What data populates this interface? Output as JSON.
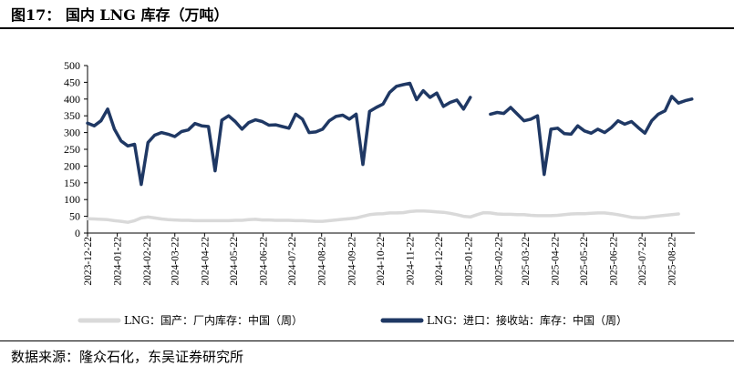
{
  "figure": {
    "title": "图17：  国内 LNG 库存（万吨）",
    "source": "数据来源：隆众石化，东吴证券研究所"
  },
  "colors": {
    "domestic": "#d9d9d9",
    "import": "#1f3864",
    "axis": "#000000"
  },
  "chart_data": {
    "type": "line",
    "title": "国内 LNG 库存（万吨）",
    "xlabel": "",
    "ylabel": "",
    "ylim": [
      0,
      500
    ],
    "yticks": [
      "0",
      "50",
      "100",
      "150",
      "200",
      "250",
      "300",
      "350",
      "400",
      "450",
      "500"
    ],
    "xticks": [
      "2023-12-22",
      "2024-01-22",
      "2024-02-22",
      "2024-03-22",
      "2024-04-22",
      "2024-05-22",
      "2024-06-22",
      "2024-07-22",
      "2024-08-22",
      "2024-09-22",
      "2024-10-22",
      "2024-11-22",
      "2024-12-22",
      "2025-01-22",
      "2025-02-22",
      "2025-03-22",
      "2025-04-22",
      "2025-05-22",
      "2025-06-22",
      "2025-07-22",
      "2025-08-22"
    ],
    "legend_position": "bottom",
    "grid": false,
    "series": [
      {
        "name": "LNG：国产：厂内库存：中国（周）",
        "color": "#d9d9d9",
        "points": [
          [
            "2023-12-22",
            43
          ],
          [
            "2023-12-29",
            42
          ],
          [
            "2024-01-05",
            41
          ],
          [
            "2024-01-12",
            40
          ],
          [
            "2024-01-19",
            37
          ],
          [
            "2024-01-26",
            35
          ],
          [
            "2024-02-02",
            32
          ],
          [
            "2024-02-09",
            37
          ],
          [
            "2024-02-16",
            45
          ],
          [
            "2024-02-23",
            48
          ],
          [
            "2024-03-01",
            45
          ],
          [
            "2024-03-08",
            42
          ],
          [
            "2024-03-15",
            40
          ],
          [
            "2024-03-22",
            39
          ],
          [
            "2024-03-29",
            38
          ],
          [
            "2024-04-05",
            38
          ],
          [
            "2024-04-12",
            37
          ],
          [
            "2024-04-19",
            37
          ],
          [
            "2024-04-26",
            37
          ],
          [
            "2024-05-03",
            37
          ],
          [
            "2024-05-10",
            37
          ],
          [
            "2024-05-17",
            37
          ],
          [
            "2024-05-24",
            38
          ],
          [
            "2024-05-31",
            38
          ],
          [
            "2024-06-07",
            40
          ],
          [
            "2024-06-14",
            41
          ],
          [
            "2024-06-21",
            39
          ],
          [
            "2024-06-28",
            39
          ],
          [
            "2024-07-05",
            38
          ],
          [
            "2024-07-12",
            38
          ],
          [
            "2024-07-19",
            38
          ],
          [
            "2024-07-26",
            37
          ],
          [
            "2024-08-02",
            37
          ],
          [
            "2024-08-09",
            36
          ],
          [
            "2024-08-16",
            35
          ],
          [
            "2024-08-23",
            35
          ],
          [
            "2024-08-30",
            37
          ],
          [
            "2024-09-06",
            39
          ],
          [
            "2024-09-13",
            41
          ],
          [
            "2024-09-20",
            43
          ],
          [
            "2024-09-27",
            45
          ],
          [
            "2024-10-04",
            50
          ],
          [
            "2024-10-11",
            55
          ],
          [
            "2024-10-18",
            57
          ],
          [
            "2024-10-25",
            58
          ],
          [
            "2024-11-01",
            60
          ],
          [
            "2024-11-08",
            60
          ],
          [
            "2024-11-15",
            61
          ],
          [
            "2024-11-22",
            64
          ],
          [
            "2024-11-29",
            66
          ],
          [
            "2024-12-06",
            66
          ],
          [
            "2024-12-13",
            65
          ],
          [
            "2024-12-20",
            63
          ],
          [
            "2024-12-27",
            62
          ],
          [
            "2025-01-03",
            59
          ],
          [
            "2025-01-10",
            55
          ],
          [
            "2025-01-17",
            50
          ],
          [
            "2025-01-24",
            48
          ],
          [
            "2025-01-31",
            55
          ],
          [
            "2025-02-07",
            61
          ],
          [
            "2025-02-14",
            60
          ],
          [
            "2025-02-21",
            57
          ],
          [
            "2025-02-28",
            56
          ],
          [
            "2025-03-07",
            56
          ],
          [
            "2025-03-14",
            55
          ],
          [
            "2025-03-21",
            55
          ],
          [
            "2025-03-28",
            53
          ],
          [
            "2025-04-04",
            52
          ],
          [
            "2025-04-11",
            52
          ],
          [
            "2025-04-18",
            52
          ],
          [
            "2025-04-25",
            53
          ],
          [
            "2025-05-02",
            55
          ],
          [
            "2025-05-09",
            57
          ],
          [
            "2025-05-16",
            58
          ],
          [
            "2025-05-23",
            58
          ],
          [
            "2025-05-30",
            59
          ],
          [
            "2025-06-06",
            60
          ],
          [
            "2025-06-13",
            60
          ],
          [
            "2025-06-20",
            58
          ],
          [
            "2025-06-27",
            55
          ],
          [
            "2025-07-04",
            51
          ],
          [
            "2025-07-11",
            47
          ],
          [
            "2025-07-18",
            46
          ],
          [
            "2025-07-25",
            46
          ],
          [
            "2025-08-01",
            49
          ],
          [
            "2025-08-08",
            51
          ],
          [
            "2025-08-15",
            53
          ],
          [
            "2025-08-22",
            55
          ],
          [
            "2025-08-29",
            57
          ]
        ]
      },
      {
        "name": "LNG：进口：接收站：库存：中国（周）",
        "color": "#1f3864",
        "segments": [
          [
            [
              "2023-12-22",
              328
            ],
            [
              "2023-12-29",
              320
            ],
            [
              "2024-01-05",
              335
            ],
            [
              "2024-01-12",
              370
            ],
            [
              "2024-01-19",
              310
            ],
            [
              "2024-01-26",
              275
            ],
            [
              "2024-02-02",
              260
            ],
            [
              "2024-02-09",
              265
            ],
            [
              "2024-02-16",
              145
            ],
            [
              "2024-02-23",
              270
            ],
            [
              "2024-03-01",
              292
            ],
            [
              "2024-03-08",
              300
            ],
            [
              "2024-03-15",
              295
            ],
            [
              "2024-03-22",
              288
            ],
            [
              "2024-03-29",
              303
            ],
            [
              "2024-04-05",
              308
            ],
            [
              "2024-04-12",
              327
            ],
            [
              "2024-04-19",
              320
            ],
            [
              "2024-04-26",
              318
            ],
            [
              "2024-05-03",
              186
            ],
            [
              "2024-05-10",
              337
            ],
            [
              "2024-05-17",
              350
            ],
            [
              "2024-05-24",
              333
            ],
            [
              "2024-05-31",
              310
            ],
            [
              "2024-06-07",
              330
            ],
            [
              "2024-06-14",
              338
            ],
            [
              "2024-06-21",
              333
            ],
            [
              "2024-06-28",
              322
            ],
            [
              "2024-07-05",
              323
            ],
            [
              "2024-07-12",
              318
            ],
            [
              "2024-07-19",
              313
            ],
            [
              "2024-07-26",
              355
            ],
            [
              "2024-08-02",
              340
            ],
            [
              "2024-08-09",
              300
            ],
            [
              "2024-08-16",
              302
            ],
            [
              "2024-08-23",
              310
            ],
            [
              "2024-08-30",
              335
            ],
            [
              "2024-09-06",
              348
            ],
            [
              "2024-09-13",
              352
            ],
            [
              "2024-09-20",
              340
            ],
            [
              "2024-09-27",
              355
            ],
            [
              "2024-10-04",
              205
            ],
            [
              "2024-10-11",
              363
            ],
            [
              "2024-10-18",
              375
            ],
            [
              "2024-10-25",
              385
            ],
            [
              "2024-11-01",
              420
            ],
            [
              "2024-11-08",
              438
            ],
            [
              "2024-11-15",
              443
            ],
            [
              "2024-11-22",
              447
            ],
            [
              "2024-11-29",
              398
            ],
            [
              "2024-12-06",
              425
            ],
            [
              "2024-12-13",
              405
            ],
            [
              "2024-12-20",
              418
            ],
            [
              "2024-12-27",
              378
            ],
            [
              "2025-01-03",
              390
            ],
            [
              "2025-01-10",
              397
            ],
            [
              "2025-01-17",
              370
            ],
            [
              "2025-01-24",
              405
            ]
          ],
          [
            [
              "2025-02-14",
              355
            ],
            [
              "2025-02-21",
              360
            ],
            [
              "2025-02-28",
              357
            ],
            [
              "2025-03-07",
              375
            ],
            [
              "2025-03-14",
              355
            ],
            [
              "2025-03-21",
              335
            ],
            [
              "2025-03-28",
              340
            ],
            [
              "2025-04-04",
              350
            ],
            [
              "2025-04-11",
              175
            ],
            [
              "2025-04-18",
              310
            ],
            [
              "2025-04-25",
              313
            ],
            [
              "2025-05-02",
              297
            ],
            [
              "2025-05-09",
              295
            ],
            [
              "2025-05-16",
              320
            ],
            [
              "2025-05-23",
              305
            ],
            [
              "2025-05-30",
              298
            ],
            [
              "2025-06-06",
              310
            ],
            [
              "2025-06-13",
              300
            ],
            [
              "2025-06-20",
              315
            ],
            [
              "2025-06-27",
              335
            ],
            [
              "2025-07-04",
              325
            ],
            [
              "2025-07-11",
              333
            ],
            [
              "2025-07-18",
              315
            ],
            [
              "2025-07-25",
              298
            ],
            [
              "2025-08-01",
              335
            ],
            [
              "2025-08-08",
              355
            ],
            [
              "2025-08-15",
              365
            ],
            [
              "2025-08-22",
              408
            ],
            [
              "2025-08-29",
              388
            ],
            [
              "2025-09-05",
              395
            ],
            [
              "2025-09-12",
              400
            ]
          ]
        ]
      }
    ]
  }
}
